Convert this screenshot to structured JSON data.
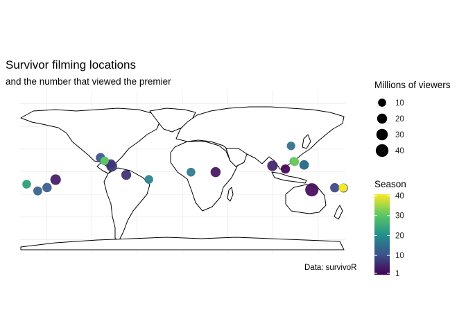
{
  "title": "Survivor filming locations",
  "subtitle": "and the number that viewed the premier",
  "caption": "Data: survivoR",
  "size_legend": {
    "title": "Millions of viewers",
    "items": [
      {
        "value": 10,
        "label": "10"
      },
      {
        "value": 20,
        "label": "20"
      },
      {
        "value": 30,
        "label": "30"
      },
      {
        "value": 40,
        "label": "40"
      }
    ]
  },
  "color_legend": {
    "title": "Season",
    "ticks": [
      {
        "value": 40,
        "label": "40"
      },
      {
        "value": 30,
        "label": "30"
      },
      {
        "value": 20,
        "label": "20"
      },
      {
        "value": 10,
        "label": "10"
      },
      {
        "value": 1,
        "label": "1"
      }
    ],
    "palette": [
      "#440154",
      "#3b528b",
      "#21918c",
      "#5ec962",
      "#fde725"
    ]
  },
  "chart_data": {
    "type": "scatter",
    "projection": "equirectangular",
    "xlim": [
      -180,
      180
    ],
    "ylim": [
      -90,
      90
    ],
    "grid": true,
    "legend_placement": "right",
    "points": [
      {
        "lon": 113.8,
        "lat": 3.0,
        "season": 1,
        "viewers": 15.5
      },
      {
        "lon": 143.0,
        "lat": -20.0,
        "season": 2,
        "viewers": 45.0
      },
      {
        "lon": 36.7,
        "lat": -0.5,
        "season": 3,
        "viewers": 20.7
      },
      {
        "lon": -140.0,
        "lat": -8.8,
        "season": 4,
        "viewers": 23.2
      },
      {
        "lon": 99.5,
        "lat": 6.5,
        "season": 5,
        "viewers": 23.0
      },
      {
        "lon": -62.0,
        "lat": -3.5,
        "season": 6,
        "viewers": 19.3
      },
      {
        "lon": -79.0,
        "lat": 8.3,
        "season": 7,
        "viewers": 18.3
      },
      {
        "lon": -78.0,
        "lat": 6.0,
        "season": 8,
        "viewers": 25.2
      },
      {
        "lon": 168.3,
        "lat": -17.7,
        "season": 9,
        "viewers": 15.8
      },
      {
        "lon": 134.5,
        "lat": 7.5,
        "season": 10,
        "viewers": 17.0
      },
      {
        "lon": -90.5,
        "lat": 15.5,
        "season": 11,
        "viewers": 16.1
      },
      {
        "lon": -149.5,
        "lat": -17.5,
        "season": 12,
        "viewers": 16.2
      },
      {
        "lon": -159.8,
        "lat": -21.2,
        "season": 13,
        "viewers": 14.2
      },
      {
        "lon": 178.0,
        "lat": -18.0,
        "season": 14,
        "viewers": 14.5
      },
      {
        "lon": 120.0,
        "lat": 28.5,
        "season": 15,
        "viewers": 12.0
      },
      {
        "lon": 134.5,
        "lat": 7.5,
        "season": 16,
        "viewers": 14.0
      },
      {
        "lon": 9.5,
        "lat": -0.5,
        "season": 17,
        "viewers": 13.0
      },
      {
        "lon": -37.0,
        "lat": -8.5,
        "season": 18,
        "viewers": 12.5
      },
      {
        "lon": -172.0,
        "lat": -13.8,
        "season": 19,
        "viewers": 11.0
      },
      {
        "lon": -172.0,
        "lat": -13.8,
        "season": 20,
        "viewers": 12.5
      },
      {
        "lon": -86.0,
        "lat": 12.0,
        "season": 21,
        "viewers": 11.0
      },
      {
        "lon": -86.0,
        "lat": 12.0,
        "season": 22,
        "viewers": 11.5
      },
      {
        "lon": -172.0,
        "lat": -13.8,
        "season": 23,
        "viewers": 11.0
      },
      {
        "lon": -172.0,
        "lat": -13.8,
        "season": 24,
        "viewers": 10.5
      },
      {
        "lon": 124.0,
        "lat": 11.0,
        "season": 25,
        "viewers": 12.0
      },
      {
        "lon": -86.0,
        "lat": 12.0,
        "season": 26,
        "viewers": 11.0
      },
      {
        "lon": 123.0,
        "lat": 11.5,
        "season": 27,
        "viewers": 11.5
      },
      {
        "lon": 124.0,
        "lat": 11.0,
        "season": 28,
        "viewers": 10.5
      },
      {
        "lon": 123.0,
        "lat": 11.5,
        "season": 29,
        "viewers": 10.0
      },
      {
        "lon": -86.0,
        "lat": 12.0,
        "season": 30,
        "viewers": 10.5
      },
      {
        "lon": 124.0,
        "lat": 11.0,
        "season": 31,
        "viewers": 9.5
      },
      {
        "lon": 124.0,
        "lat": 11.0,
        "season": 32,
        "viewers": 9.8
      },
      {
        "lon": 177.5,
        "lat": -17.7,
        "season": 33,
        "viewers": 9.5
      },
      {
        "lon": 177.0,
        "lat": -17.8,
        "season": 34,
        "viewers": 9.5
      },
      {
        "lon": 177.5,
        "lat": -17.6,
        "season": 35,
        "viewers": 9.0
      },
      {
        "lon": 177.0,
        "lat": -17.7,
        "season": 36,
        "viewers": 8.8
      },
      {
        "lon": 177.4,
        "lat": -17.8,
        "season": 37,
        "viewers": 8.5
      },
      {
        "lon": 177.2,
        "lat": -17.6,
        "season": 38,
        "viewers": 8.0
      },
      {
        "lon": 177.6,
        "lat": -17.7,
        "season": 39,
        "viewers": 7.5
      },
      {
        "lon": 178.2,
        "lat": -17.9,
        "season": 40,
        "viewers": 7.0
      }
    ]
  }
}
